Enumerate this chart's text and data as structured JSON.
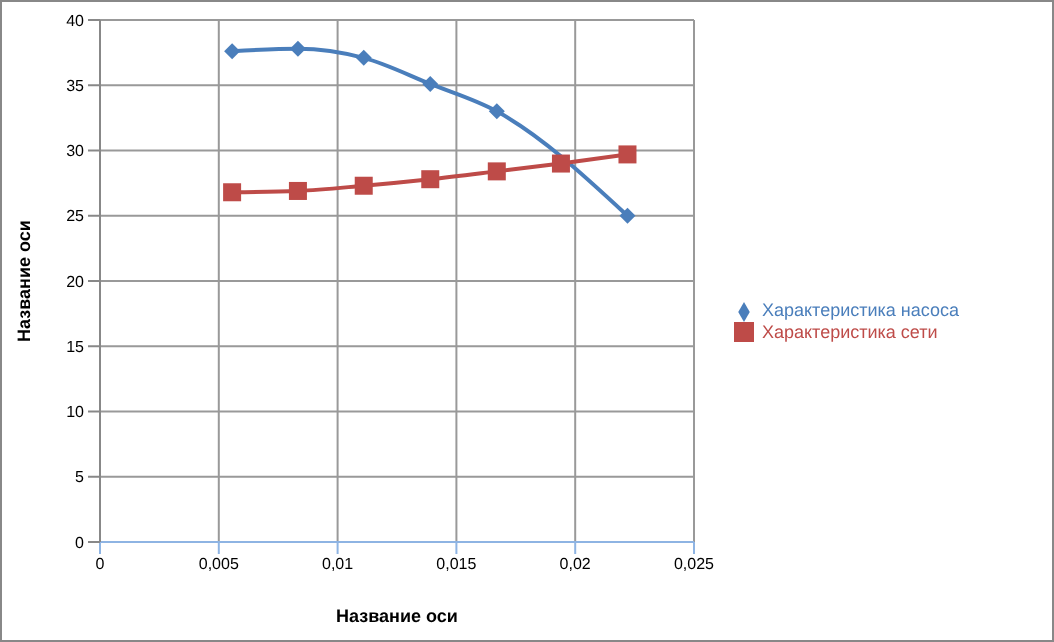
{
  "chart_data": {
    "type": "line",
    "xlabel": "Название оси",
    "ylabel": "Название оси",
    "x": [
      0.00556,
      0.00833,
      0.0111,
      0.0139,
      0.0167,
      0.0194,
      0.0222
    ],
    "series": [
      {
        "name": "Характеристика насоса",
        "color": "#4a7ebb",
        "marker": "diamond",
        "values": [
          37.6,
          37.8,
          37.1,
          35.1,
          33.0,
          null,
          25.0
        ]
      },
      {
        "name": "Характеристика сети",
        "color": "#be4b48",
        "marker": "square",
        "values": [
          26.8,
          26.9,
          27.3,
          27.8,
          28.4,
          29.0,
          29.7
        ]
      }
    ],
    "xlim": [
      0,
      0.025
    ],
    "xticks": [
      {
        "value": 0,
        "label": "0"
      },
      {
        "value": 0.005,
        "label": "0,005"
      },
      {
        "value": 0.01,
        "label": "0,01"
      },
      {
        "value": 0.015,
        "label": "0,015"
      },
      {
        "value": 0.02,
        "label": "0,02"
      },
      {
        "value": 0.025,
        "label": "0,025"
      }
    ],
    "ylim": [
      0,
      40
    ],
    "yticks": [
      0,
      5,
      10,
      15,
      20,
      25,
      30,
      35,
      40
    ],
    "grid": true,
    "legend": "right",
    "line_style": "solid"
  }
}
